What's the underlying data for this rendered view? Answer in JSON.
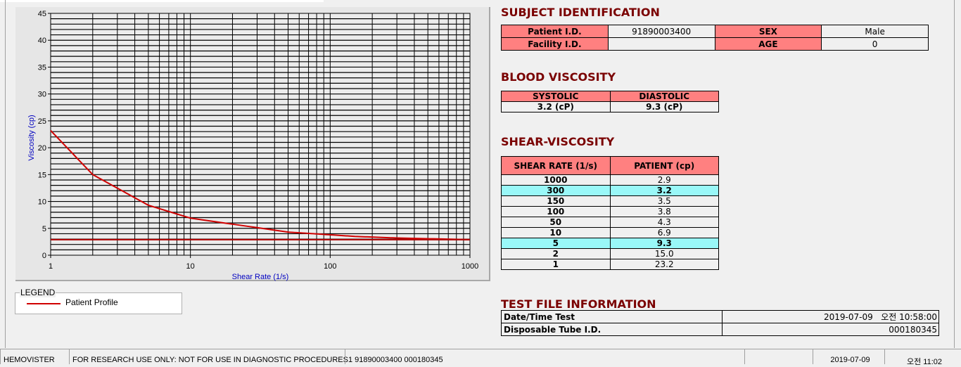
{
  "chart_data": {
    "type": "line",
    "xlabel": "Shear Rate (1/s)",
    "ylabel": "Viscosity (cp)",
    "xscale": "log",
    "xlim": [
      1,
      1000
    ],
    "ylim": [
      0,
      45
    ],
    "x_ticks": [
      "1",
      "10",
      "100",
      "1000"
    ],
    "y_ticks": [
      "0",
      "5",
      "10",
      "15",
      "20",
      "25",
      "30",
      "35",
      "40",
      "45"
    ],
    "grid": true,
    "series": [
      {
        "name": "Patient Profile",
        "color": "#d00000",
        "x": [
          1,
          2,
          5,
          10,
          50,
          100,
          150,
          300,
          1000
        ],
        "y": [
          23.2,
          15.0,
          9.3,
          6.9,
          4.3,
          3.8,
          3.5,
          3.2,
          2.9
        ]
      },
      {
        "color": "#b00000",
        "x": [
          1,
          1000
        ],
        "y": [
          2.9,
          2.9
        ]
      }
    ]
  },
  "legend": {
    "title": "LEGEND",
    "items": [
      {
        "label": "Patient Profile",
        "color": "#d00000"
      }
    ]
  },
  "subject": {
    "title": "SUBJECT IDENTIFICATION",
    "patient_id_label": "Patient I.D.",
    "patient_id": "91890003400",
    "sex_label": "SEX",
    "sex": "Male",
    "facility_id_label": "Facility I.D.",
    "facility_id": "",
    "age_label": "AGE",
    "age": "0"
  },
  "blood_viscosity": {
    "title": "BLOOD VISCOSITY",
    "systolic_label": "SYSTOLIC",
    "diastolic_label": "DIASTOLIC",
    "systolic": "3.2 (cP)",
    "diastolic": "9.3 (cP)"
  },
  "shear_viscosity": {
    "title": "SHEAR-VISCOSITY",
    "headers": [
      "SHEAR RATE (1/s)",
      "PATIENT (cp)"
    ],
    "rows": [
      {
        "rate": "1000",
        "value": "2.9",
        "highlight": false
      },
      {
        "rate": "300",
        "value": "3.2",
        "highlight": true
      },
      {
        "rate": "150",
        "value": "3.5",
        "highlight": false
      },
      {
        "rate": "100",
        "value": "3.8",
        "highlight": false
      },
      {
        "rate": "50",
        "value": "4.3",
        "highlight": false
      },
      {
        "rate": "10",
        "value": "6.9",
        "highlight": false
      },
      {
        "rate": "5",
        "value": "9.3",
        "highlight": true
      },
      {
        "rate": "2",
        "value": "15.0",
        "highlight": false
      },
      {
        "rate": "1",
        "value": "23.2",
        "highlight": false
      }
    ]
  },
  "test_file": {
    "title": "TEST FILE INFORMATION",
    "datetime_label": "Date/Time Test",
    "datetime": "2019-07-09   오전 10:58:00",
    "tube_label": "Disposable Tube I.D.",
    "tube": "000180345"
  },
  "status_bar": {
    "app": "HEMOVISTER",
    "notice": "FOR RESEARCH USE ONLY: NOT FOR USE IN DIAGNOSTIC PROCEDURES",
    "record": "1  91890003400  000180345",
    "empty": "",
    "date": "2019-07-09",
    "time": "오전 11:02"
  }
}
